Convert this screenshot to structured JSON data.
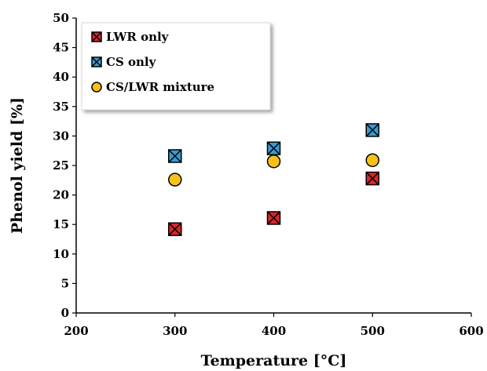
{
  "chart_data": {
    "type": "scatter",
    "title": "",
    "xlabel": "Temperature [°C]",
    "ylabel": "Phenol yield [%]",
    "xlim": [
      200,
      600
    ],
    "ylim": [
      0,
      50
    ],
    "xticks": [
      200,
      300,
      400,
      500,
      600
    ],
    "yticks": [
      0,
      5,
      10,
      15,
      20,
      25,
      30,
      35,
      40,
      45,
      50
    ],
    "grid": false,
    "legend_position": "top-left",
    "series": [
      {
        "name": "LWR only",
        "marker": "square-x",
        "color": "#d8262c",
        "x": [
          300,
          400,
          500
        ],
        "y": [
          14.2,
          16.1,
          22.8
        ]
      },
      {
        "name": "CS only",
        "marker": "square-x",
        "color": "#3a9bd2",
        "x": [
          300,
          400,
          500
        ],
        "y": [
          26.6,
          27.9,
          31.0
        ]
      },
      {
        "name": "CS/LWR mixture",
        "marker": "circle",
        "color": "#f6c21a",
        "x": [
          300,
          400,
          500
        ],
        "y": [
          22.6,
          25.7,
          25.9
        ]
      }
    ]
  }
}
